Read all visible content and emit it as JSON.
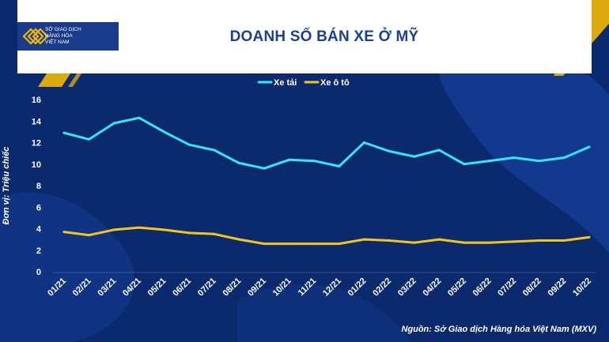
{
  "header": {
    "logo_lines": [
      "SỞ GIAO DỊCH",
      "HÀNG HÓA",
      "VIỆT NAM"
    ]
  },
  "source": "Nguồn: Sở Giao dịch Hàng hóa Việt Nam (MXV)",
  "colors": {
    "background": "#0b2a6e",
    "accent": "#f2b705",
    "series_truck": "#33e6f5",
    "series_car": "#f5c518"
  },
  "chart_data": {
    "type": "line",
    "title": "DOANH SỐ BÁN XE Ở MỸ",
    "xlabel": "",
    "ylabel": "Đơn vị: Triệu chiếc",
    "ylim": [
      0,
      16
    ],
    "yticks": [
      "0",
      "2",
      "4",
      "6",
      "8",
      "10",
      "12",
      "14",
      "16"
    ],
    "categories": [
      "01/21",
      "02/21",
      "03/21",
      "04/21",
      "05/21",
      "06/21",
      "07/21",
      "08/21",
      "09/21",
      "10/21",
      "11/21",
      "12/21",
      "01/22",
      "02/22",
      "03/22",
      "04/22",
      "05/22",
      "06/22",
      "07/22",
      "08/22",
      "09/22",
      "10/22"
    ],
    "legend_position": "top-center",
    "grid": false,
    "series": [
      {
        "name": "Xe tải",
        "color": "#33e6f5",
        "values": [
          12.9,
          12.3,
          13.8,
          14.3,
          13.0,
          11.8,
          11.3,
          10.1,
          9.6,
          10.4,
          10.3,
          9.8,
          12.0,
          11.2,
          10.7,
          11.3,
          10.0,
          10.3,
          10.6,
          10.3,
          10.6,
          11.6
        ]
      },
      {
        "name": "Xe ô tô",
        "color": "#f5c518",
        "values": [
          3.7,
          3.4,
          3.9,
          4.1,
          3.9,
          3.6,
          3.5,
          3.0,
          2.6,
          2.6,
          2.6,
          2.6,
          3.0,
          2.9,
          2.7,
          3.0,
          2.7,
          2.7,
          2.8,
          2.9,
          2.9,
          3.2
        ]
      }
    ]
  }
}
